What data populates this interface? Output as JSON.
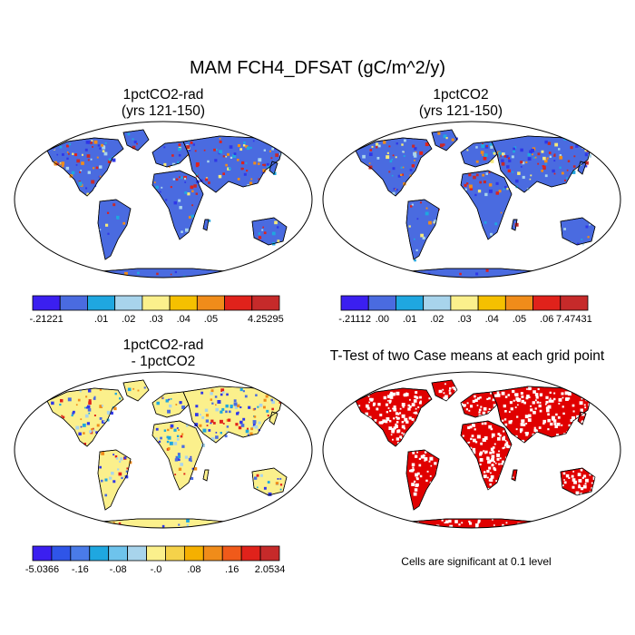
{
  "title": "MAM FCH4_DFSAT (gC/m^2/y)",
  "panels": [
    {
      "line1": "1pctCO2-rad",
      "line2": "(yrs 121-150)",
      "base_color": "#4a6be0",
      "speckle_colors": [
        "#e0221b",
        "#c62a2a",
        "#f08c1a",
        "#f5e97a",
        "#a8d4ec",
        "#2f37e8",
        "#1fa7e0"
      ]
    },
    {
      "line1": "1pctCO2",
      "line2": "(yrs 121-150)",
      "base_color": "#4a6be0",
      "speckle_colors": [
        "#e0221b",
        "#c62a2a",
        "#f08c1a",
        "#f5e97a",
        "#a8d4ec",
        "#2f37e8",
        "#1fa7e0"
      ]
    },
    {
      "line1": "1pctCO2-rad",
      "line2": "- 1pctCO2",
      "base_color": "#fbf08c",
      "speckle_colors": [
        "#a8d4ec",
        "#1fa7e0",
        "#4a6be0",
        "#e0221b",
        "#f08c1a",
        "#2f37e8"
      ]
    },
    {
      "line1": "T-Test of two Case means at each grid point",
      "line2": "",
      "base_color": "#e00000",
      "speckle_colors": [
        "#ffffff"
      ]
    }
  ],
  "colorbars": [
    {
      "colors": [
        "#3b1ff0",
        "#4a6be0",
        "#1fa7e0",
        "#a8d4ec",
        "#fbf08c",
        "#f5c000",
        "#f08c1a",
        "#e0221b",
        "#c62a2a"
      ],
      "labels": [
        "-.21221",
        "",
        ".01",
        ".02",
        ".03",
        ".04",
        ".05",
        "",
        "4.25295"
      ]
    },
    {
      "colors": [
        "#3b1ff0",
        "#4a6be0",
        "#1fa7e0",
        "#a8d4ec",
        "#fbf08c",
        "#f5c000",
        "#f08c1a",
        "#e0221b",
        "#c62a2a"
      ],
      "labels": [
        "-.21112",
        ".00",
        ".01",
        ".02",
        ".03",
        ".04",
        ".05",
        ".06",
        "7.47431"
      ]
    },
    {
      "colors": [
        "#3b1ff0",
        "#2f55e8",
        "#4a7be8",
        "#1fa7e0",
        "#6ec3ec",
        "#a8d4ec",
        "#fbf08c",
        "#f5d24a",
        "#f5b000",
        "#f08c1a",
        "#f05a1a",
        "#e0221b",
        "#c62a2a"
      ],
      "labels": [
        "-5.0366",
        "",
        "-.16",
        "",
        "-.08",
        "",
        "-.0",
        "",
        ".08",
        "",
        ".16",
        "",
        "2.0534"
      ]
    }
  ],
  "note": "Cells are significant at 0.1 level"
}
